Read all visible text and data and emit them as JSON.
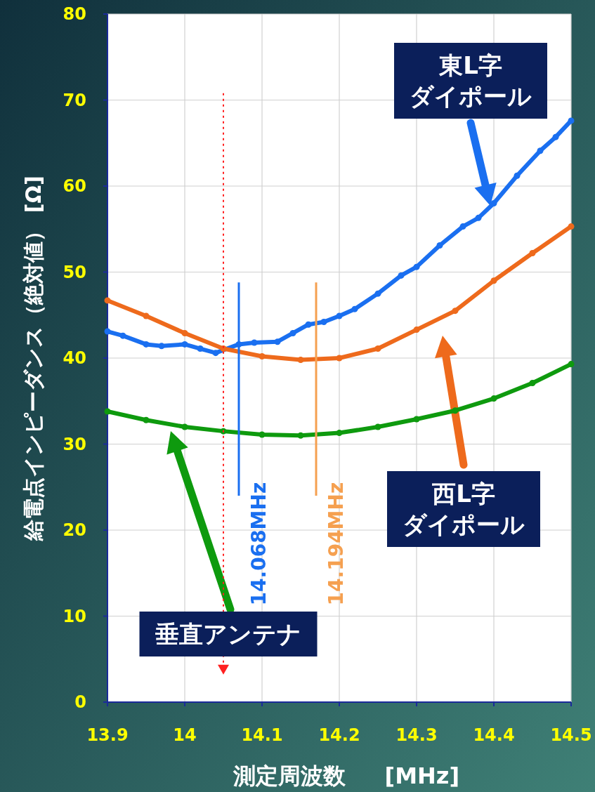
{
  "chart_data": {
    "type": "line",
    "xlabel": "測定周波数     [MHz]",
    "ylabel": "給電点インピーダンス（絶対値） [Ω]",
    "xlim": [
      13.9,
      14.5
    ],
    "xticks": [
      13.9,
      14,
      14.1,
      14.2,
      14.3,
      14.4,
      14.5
    ],
    "ylim": [
      0,
      80
    ],
    "yticks": [
      0,
      10,
      20,
      30,
      40,
      50,
      60,
      70,
      80
    ],
    "grid": true,
    "marker": "circle",
    "series": [
      {
        "color": "#1a6ff0",
        "x": [
          13.9,
          13.92,
          13.95,
          13.97,
          14.0,
          14.02,
          14.04,
          14.07,
          14.09,
          14.12,
          14.14,
          14.16,
          14.18,
          14.2,
          14.22,
          14.25,
          14.28,
          14.3,
          14.33,
          14.36,
          14.38,
          14.4,
          14.43,
          14.46,
          14.48,
          14.5
        ],
        "values": [
          43.1,
          42.6,
          41.6,
          41.4,
          41.6,
          41.1,
          40.6,
          41.6,
          41.8,
          41.9,
          42.9,
          43.9,
          44.2,
          44.9,
          45.7,
          47.5,
          49.6,
          50.6,
          53.1,
          55.3,
          56.3,
          58.0,
          61.2,
          64.1,
          65.7,
          67.6
        ]
      },
      {
        "color": "#ee6a1c",
        "x": [
          13.9,
          13.95,
          14.0,
          14.05,
          14.1,
          14.15,
          14.2,
          14.25,
          14.3,
          14.35,
          14.4,
          14.45,
          14.5
        ],
        "values": [
          46.7,
          44.9,
          42.9,
          41.1,
          40.2,
          39.8,
          40.0,
          41.1,
          43.3,
          45.5,
          49.0,
          52.2,
          55.3
        ]
      },
      {
        "color": "#0e9a0e",
        "x": [
          13.9,
          13.95,
          14.0,
          14.05,
          14.1,
          14.15,
          14.2,
          14.25,
          14.3,
          14.35,
          14.4,
          14.45,
          14.5
        ],
        "values": [
          33.8,
          32.8,
          32.0,
          31.5,
          31.1,
          31.0,
          31.3,
          32.0,
          32.9,
          33.9,
          35.3,
          37.1,
          39.3
        ]
      }
    ],
    "ref_lines": [
      {
        "axis": "x",
        "value": 14.07,
        "label": "14.068MHz",
        "color": "#1a6ff0"
      },
      {
        "axis": "x",
        "value": 14.17,
        "label": "14.194MHz",
        "color": "#f5a050"
      },
      {
        "axis": "x",
        "value": 14.05,
        "label": null,
        "color": "#ff2020",
        "line_style": "dotted"
      }
    ],
    "annotations": [
      "東L字",
      "ダイポール",
      "西L字",
      "ダイポール",
      "垂直アンテナ"
    ]
  }
}
